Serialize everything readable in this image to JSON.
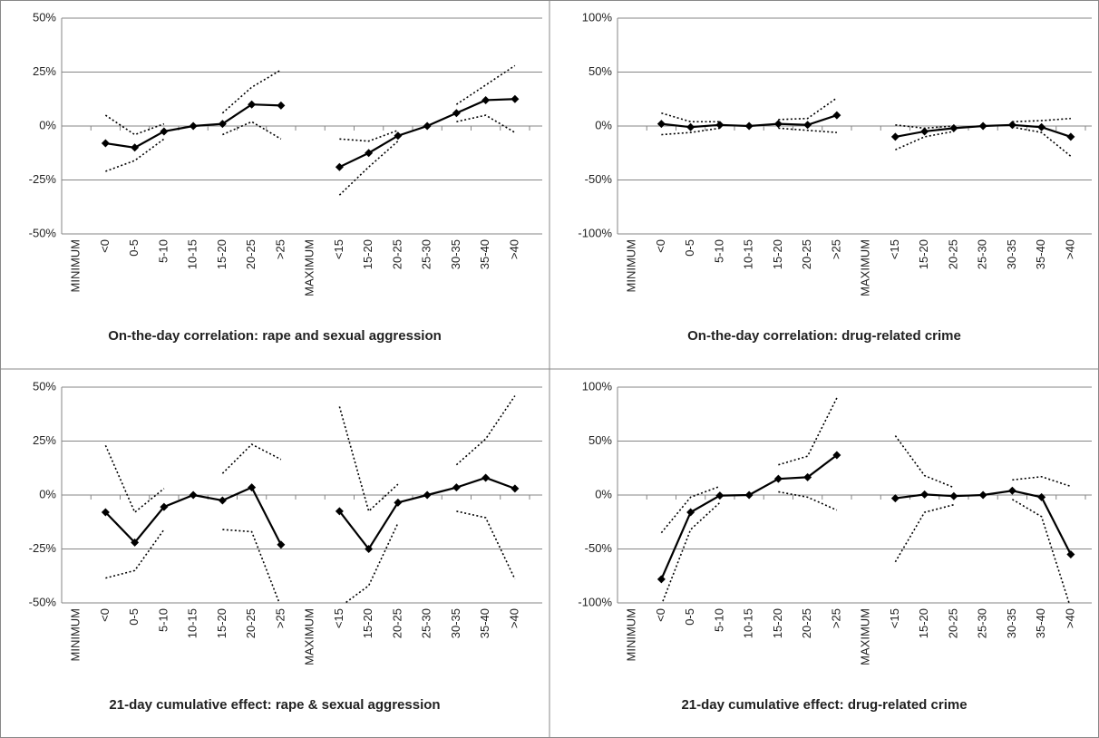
{
  "chart_data": [
    {
      "type": "line",
      "title": "On-the-day correlation: rape and sexual aggression",
      "categories": [
        "MINIMUM",
        "<0",
        "0-5",
        "5-10",
        "10-15",
        "15-20",
        "20-25",
        ">25",
        "MAXIMUM",
        "<15",
        "15-20",
        "20-25",
        "25-30",
        "30-35",
        "35-40",
        ">40"
      ],
      "series": [
        {
          "color": "#000000",
          "dash": false,
          "marker": "diamond",
          "values": [
            null,
            -8,
            -10,
            -2.5,
            0,
            1,
            10,
            9.5,
            null,
            -19,
            -12.5,
            -4.5,
            0,
            6,
            12,
            12.5
          ]
        },
        {
          "color": "#000000",
          "dash": true,
          "marker": "none",
          "values": [
            null,
            5,
            -4,
            1,
            null,
            6,
            18,
            26,
            null,
            -6,
            -7,
            -2,
            null,
            10,
            19,
            28
          ]
        },
        {
          "color": "#000000",
          "dash": true,
          "marker": "none",
          "values": [
            null,
            -21,
            -16,
            -6,
            null,
            -4,
            2,
            -6,
            null,
            -32,
            -19,
            -7,
            null,
            2,
            5,
            -3
          ]
        }
      ],
      "ylim": [
        -50,
        50
      ],
      "yticks": [
        {
          "value": -50,
          "label": "-50%"
        },
        {
          "value": -25,
          "label": "-25%"
        },
        {
          "value": 0,
          "label": "0%"
        },
        {
          "value": 25,
          "label": "25%"
        },
        {
          "value": 50,
          "label": "50%"
        }
      ],
      "grid": true
    },
    {
      "type": "line",
      "title": "On-the-day correlation: drug-related crime",
      "categories": [
        "MINIMUM",
        "<0",
        "0-5",
        "5-10",
        "10-15",
        "15-20",
        "20-25",
        ">25",
        "MAXIMUM",
        "<15",
        "15-20",
        "20-25",
        "25-30",
        "30-35",
        "35-40",
        ">40"
      ],
      "series": [
        {
          "color": "#000000",
          "dash": false,
          "marker": "diamond",
          "values": [
            null,
            2,
            -1,
            1,
            0,
            2,
            1,
            10,
            null,
            -10,
            -5,
            -2,
            0,
            1,
            -1,
            -10
          ]
        },
        {
          "color": "#000000",
          "dash": true,
          "marker": "none",
          "values": [
            null,
            12,
            4,
            4,
            null,
            6,
            7,
            26,
            null,
            1,
            -2,
            0,
            null,
            4,
            5,
            7
          ]
        },
        {
          "color": "#000000",
          "dash": true,
          "marker": "none",
          "values": [
            null,
            -8,
            -6,
            -2,
            null,
            -2,
            -4,
            -6,
            null,
            -22,
            -10,
            -5,
            null,
            -1,
            -6,
            -28
          ]
        }
      ],
      "ylim": [
        -100,
        100
      ],
      "yticks": [
        {
          "value": -100,
          "label": "-100%"
        },
        {
          "value": -50,
          "label": "-50%"
        },
        {
          "value": 0,
          "label": "0%"
        },
        {
          "value": 50,
          "label": "50%"
        },
        {
          "value": 100,
          "label": "100%"
        }
      ],
      "grid": true
    },
    {
      "type": "line",
      "title": "21-day cumulative effect: rape & sexual aggression",
      "categories": [
        "MINIMUM",
        "<0",
        "0-5",
        "5-10",
        "10-15",
        "15-20",
        "20-25",
        ">25",
        "MAXIMUM",
        "<15",
        "15-20",
        "20-25",
        "25-30",
        "30-35",
        "35-40",
        ">40"
      ],
      "series": [
        {
          "color": "#000000",
          "dash": false,
          "marker": "diamond",
          "values": [
            null,
            -8,
            -22,
            -5.5,
            0,
            -2.5,
            3.5,
            -23,
            null,
            -7.5,
            -25,
            -3.5,
            0,
            3.5,
            8,
            3
          ]
        },
        {
          "color": "#000000",
          "dash": true,
          "marker": "none",
          "values": [
            null,
            23,
            -8,
            3,
            null,
            10,
            23.5,
            16.5,
            null,
            41,
            -7.5,
            5,
            null,
            14,
            26,
            46
          ]
        },
        {
          "color": "#000000",
          "dash": true,
          "marker": "none",
          "values": [
            null,
            -38.5,
            -35,
            -16,
            null,
            -16,
            -17,
            -52,
            null,
            -52,
            -42,
            -13,
            null,
            -7.5,
            -10.5,
            -39
          ]
        }
      ],
      "ylim": [
        -50,
        50
      ],
      "yticks": [
        {
          "value": -50,
          "label": "-50%"
        },
        {
          "value": -25,
          "label": "-25%"
        },
        {
          "value": 0,
          "label": "0%"
        },
        {
          "value": 25,
          "label": "25%"
        },
        {
          "value": 50,
          "label": "50%"
        }
      ],
      "grid": true
    },
    {
      "type": "line",
      "title": "21-day cumulative effect: drug-related crime",
      "categories": [
        "MINIMUM",
        "<0",
        "0-5",
        "5-10",
        "10-15",
        "15-20",
        "20-25",
        ">25",
        "MAXIMUM",
        "<15",
        "15-20",
        "20-25",
        "25-30",
        "30-35",
        "35-40",
        ">40"
      ],
      "series": [
        {
          "color": "#000000",
          "dash": false,
          "marker": "diamond",
          "values": [
            null,
            -78,
            -16,
            -0.5,
            0,
            15,
            16.5,
            37,
            null,
            -3,
            0.5,
            -1,
            0,
            4,
            -2,
            -55
          ]
        },
        {
          "color": "#000000",
          "dash": true,
          "marker": "none",
          "values": [
            null,
            -35,
            -2,
            8,
            null,
            28,
            36,
            90,
            null,
            55,
            18,
            7,
            null,
            14,
            17,
            8
          ]
        },
        {
          "color": "#000000",
          "dash": true,
          "marker": "none",
          "values": [
            null,
            -102,
            -32,
            -7,
            null,
            3,
            -2,
            -14,
            null,
            -62,
            -16,
            -9,
            null,
            -4,
            -20,
            -105
          ]
        }
      ],
      "ylim": [
        -100,
        100
      ],
      "yticks": [
        {
          "value": -100,
          "label": "-100%"
        },
        {
          "value": -50,
          "label": "-50%"
        },
        {
          "value": 0,
          "label": "0%"
        },
        {
          "value": 50,
          "label": "50%"
        },
        {
          "value": 100,
          "label": "100%"
        }
      ],
      "grid": true
    }
  ]
}
